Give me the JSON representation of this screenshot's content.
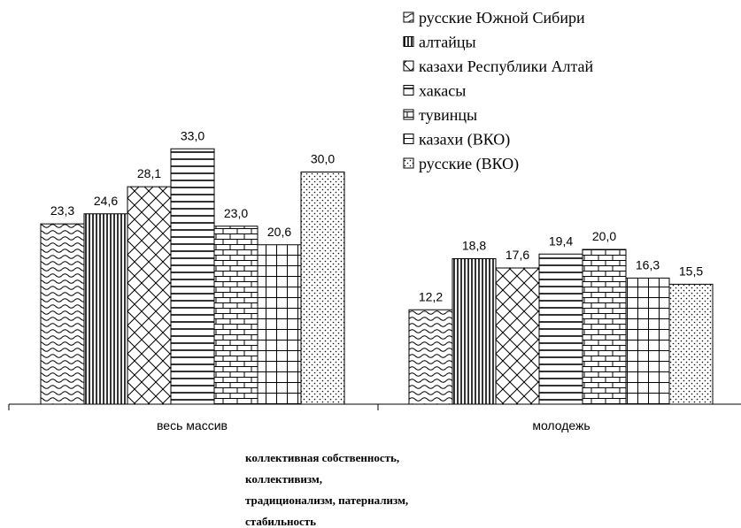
{
  "chart_data": {
    "type": "bar",
    "categories": [
      "весь массив",
      "молодежь"
    ],
    "series": [
      {
        "name": "русские Южной Сибири",
        "values": [
          23.3,
          12.2
        ],
        "labels": [
          "23,3",
          "12,2"
        ],
        "pattern": "wave"
      },
      {
        "name": "алтайцы",
        "values": [
          24.6,
          18.8
        ],
        "labels": [
          "24,6",
          "18,8"
        ],
        "pattern": "vlines"
      },
      {
        "name": "казахи Республики Алтай",
        "values": [
          28.1,
          17.6
        ],
        "labels": [
          "28,1",
          "17,6"
        ],
        "pattern": "diamond"
      },
      {
        "name": "хакасы",
        "values": [
          33.0,
          19.4
        ],
        "labels": [
          "33,0",
          "19,4"
        ],
        "pattern": "hlines"
      },
      {
        "name": "тувинцы",
        "values": [
          23.0,
          20.0
        ],
        "labels": [
          "23,0",
          "20,0"
        ],
        "pattern": "brick"
      },
      {
        "name": "казахи (ВКО)",
        "values": [
          20.6,
          16.3
        ],
        "labels": [
          "20,6",
          "16,3"
        ],
        "pattern": "grid"
      },
      {
        "name": "русские (ВКО)",
        "values": [
          30.0,
          15.5
        ],
        "labels": [
          "30,0",
          "15,5"
        ],
        "pattern": "dots"
      }
    ],
    "ylim": [
      0,
      36
    ],
    "y_axis_visible": false,
    "gridlines": false,
    "legend_position": "top-right",
    "caption_lines": [
      "коллективная собственность,",
      "коллективизм,",
      "традиционализм, патернализм,",
      "стабильность"
    ]
  }
}
